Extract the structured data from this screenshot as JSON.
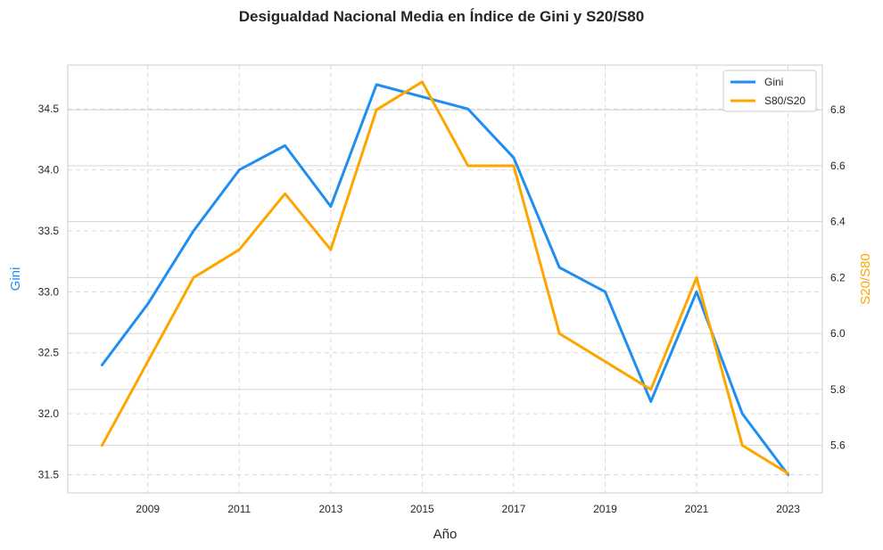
{
  "chart_data": {
    "type": "line",
    "title": "Desigualdad Nacional Media en Índice de Gini y S20/S80",
    "xlabel": "Año",
    "ylabel_left": "Gini",
    "ylabel_right": "S20/S80",
    "x": [
      2008,
      2009,
      2010,
      2011,
      2012,
      2013,
      2014,
      2015,
      2016,
      2017,
      2018,
      2019,
      2020,
      2021,
      2022,
      2023
    ],
    "x_ticks": [
      2009,
      2011,
      2013,
      2015,
      2017,
      2019,
      2021,
      2023
    ],
    "series": [
      {
        "name": "Gini",
        "axis": "left",
        "color": "#1f8ef1",
        "values": [
          32.4,
          32.9,
          33.5,
          34.0,
          34.2,
          33.7,
          34.7,
          34.6,
          34.5,
          34.1,
          33.2,
          33.0,
          32.1,
          33.0,
          32.0,
          31.5
        ]
      },
      {
        "name": "S80/S20",
        "axis": "right",
        "color": "#ffa500",
        "values": [
          5.6,
          5.9,
          6.2,
          6.3,
          6.5,
          6.3,
          6.8,
          6.9,
          6.6,
          6.6,
          6.0,
          5.9,
          5.8,
          6.2,
          5.6,
          5.5
        ]
      }
    ],
    "left_ticks": [
      31.5,
      32.0,
      32.5,
      33.0,
      33.5,
      34.0,
      34.5
    ],
    "right_ticks": [
      5.6,
      5.8,
      6.0,
      6.2,
      6.4,
      6.6,
      6.8
    ],
    "xlim": [
      2007.25,
      2023.75
    ],
    "ylim_left": [
      31.35,
      34.86
    ],
    "ylim_right": [
      5.43,
      6.96
    ],
    "grid": true,
    "legend": "upper right",
    "colors": {
      "left_axis_label": "#1f8ef1",
      "right_axis_label": "#ffa500",
      "grid": "#d9d9d9",
      "spine": "#cccccc"
    }
  }
}
